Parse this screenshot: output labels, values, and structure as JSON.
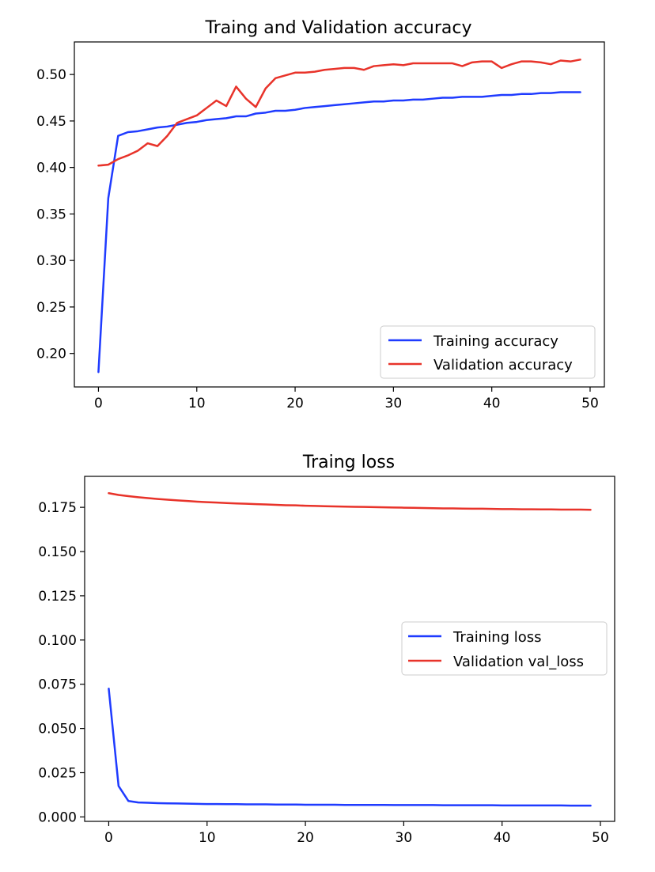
{
  "chart_data": [
    {
      "type": "line",
      "title": "Traing and Validation accuracy",
      "xlabel": "",
      "ylabel": "",
      "xlim": [
        -2.45,
        51.45
      ],
      "ylim": [
        0.164,
        0.535
      ],
      "xticks": [
        0,
        10,
        20,
        30,
        40,
        50
      ],
      "yticks": [
        0.2,
        0.25,
        0.3,
        0.35,
        0.4,
        0.45,
        0.5
      ],
      "ytick_labels": [
        "0.20",
        "0.25",
        "0.30",
        "0.35",
        "0.40",
        "0.45",
        "0.50"
      ],
      "grid": false,
      "legend_position": "lower right",
      "series": [
        {
          "name": "Training accuracy",
          "color": "#1f3bff",
          "x": [
            0,
            1,
            2,
            3,
            4,
            5,
            6,
            7,
            8,
            9,
            10,
            11,
            12,
            13,
            14,
            15,
            16,
            17,
            18,
            19,
            20,
            21,
            22,
            23,
            24,
            25,
            26,
            27,
            28,
            29,
            30,
            31,
            32,
            33,
            34,
            35,
            36,
            37,
            38,
            39,
            40,
            41,
            42,
            43,
            44,
            45,
            46,
            47,
            48,
            49
          ],
          "values": [
            0.18,
            0.367,
            0.434,
            0.438,
            0.439,
            0.441,
            0.443,
            0.444,
            0.446,
            0.448,
            0.449,
            0.451,
            0.452,
            0.453,
            0.455,
            0.455,
            0.458,
            0.459,
            0.461,
            0.461,
            0.462,
            0.464,
            0.465,
            0.466,
            0.467,
            0.468,
            0.469,
            0.47,
            0.471,
            0.471,
            0.472,
            0.472,
            0.473,
            0.473,
            0.474,
            0.475,
            0.475,
            0.476,
            0.476,
            0.476,
            0.477,
            0.478,
            0.478,
            0.479,
            0.479,
            0.48,
            0.48,
            0.481,
            0.481,
            0.481
          ]
        },
        {
          "name": "Validation accuracy",
          "color": "#e8332a",
          "x": [
            0,
            1,
            2,
            3,
            4,
            5,
            6,
            7,
            8,
            9,
            10,
            11,
            12,
            13,
            14,
            15,
            16,
            17,
            18,
            19,
            20,
            21,
            22,
            23,
            24,
            25,
            26,
            27,
            28,
            29,
            30,
            31,
            32,
            33,
            34,
            35,
            36,
            37,
            38,
            39,
            40,
            41,
            42,
            43,
            44,
            45,
            46,
            47,
            48,
            49
          ],
          "values": [
            0.402,
            0.403,
            0.409,
            0.413,
            0.418,
            0.426,
            0.423,
            0.434,
            0.448,
            0.452,
            0.456,
            0.464,
            0.472,
            0.466,
            0.487,
            0.474,
            0.465,
            0.485,
            0.496,
            0.499,
            0.502,
            0.502,
            0.503,
            0.505,
            0.506,
            0.507,
            0.507,
            0.505,
            0.509,
            0.51,
            0.511,
            0.51,
            0.512,
            0.512,
            0.512,
            0.512,
            0.512,
            0.509,
            0.513,
            0.514,
            0.514,
            0.507,
            0.511,
            0.514,
            0.514,
            0.513,
            0.511,
            0.515,
            0.514,
            0.516
          ]
        }
      ]
    },
    {
      "type": "line",
      "title": "Traing loss",
      "xlabel": "",
      "ylabel": "",
      "xlim": [
        -2.45,
        51.45
      ],
      "ylim": [
        -0.0025,
        0.1925
      ],
      "xticks": [
        0,
        10,
        20,
        30,
        40,
        50
      ],
      "yticks": [
        0.0,
        0.025,
        0.05,
        0.075,
        0.1,
        0.125,
        0.15,
        0.175
      ],
      "ytick_labels": [
        "0.000",
        "0.025",
        "0.050",
        "0.075",
        "0.100",
        "0.125",
        "0.150",
        "0.175"
      ],
      "grid": false,
      "legend_position": "center right",
      "series": [
        {
          "name": "Training loss",
          "color": "#1f3bff",
          "x": [
            0,
            1,
            2,
            3,
            4,
            5,
            6,
            7,
            8,
            9,
            10,
            11,
            12,
            13,
            14,
            15,
            16,
            17,
            18,
            19,
            20,
            21,
            22,
            23,
            24,
            25,
            26,
            27,
            28,
            29,
            30,
            31,
            32,
            33,
            34,
            35,
            36,
            37,
            38,
            39,
            40,
            41,
            42,
            43,
            44,
            45,
            46,
            47,
            48,
            49
          ],
          "values": [
            0.0725,
            0.0175,
            0.009,
            0.0082,
            0.008,
            0.0078,
            0.0077,
            0.0076,
            0.0075,
            0.0074,
            0.0073,
            0.0073,
            0.0072,
            0.0072,
            0.0071,
            0.0071,
            0.0071,
            0.007,
            0.007,
            0.007,
            0.0069,
            0.0069,
            0.0069,
            0.0069,
            0.0068,
            0.0068,
            0.0068,
            0.0068,
            0.0068,
            0.0067,
            0.0067,
            0.0067,
            0.0067,
            0.0067,
            0.0066,
            0.0066,
            0.0066,
            0.0066,
            0.0066,
            0.0066,
            0.0065,
            0.0065,
            0.0065,
            0.0065,
            0.0065,
            0.0065,
            0.0065,
            0.0064,
            0.0064,
            0.0064
          ]
        },
        {
          "name": "Validation val_loss",
          "color": "#e8332a",
          "x": [
            0,
            1,
            2,
            3,
            4,
            5,
            6,
            7,
            8,
            9,
            10,
            11,
            12,
            13,
            14,
            15,
            16,
            17,
            18,
            19,
            20,
            21,
            22,
            23,
            24,
            25,
            26,
            27,
            28,
            29,
            30,
            31,
            32,
            33,
            34,
            35,
            36,
            37,
            38,
            39,
            40,
            41,
            42,
            43,
            44,
            45,
            46,
            47,
            48,
            49
          ],
          "values": [
            0.183,
            0.182,
            0.1813,
            0.1807,
            0.1802,
            0.1797,
            0.1793,
            0.1789,
            0.1786,
            0.1782,
            0.1779,
            0.1777,
            0.1774,
            0.1772,
            0.177,
            0.1768,
            0.1766,
            0.1764,
            0.1762,
            0.1761,
            0.1759,
            0.1758,
            0.1756,
            0.1755,
            0.1754,
            0.1753,
            0.1752,
            0.1751,
            0.175,
            0.1749,
            0.1748,
            0.1747,
            0.1746,
            0.1745,
            0.1744,
            0.1744,
            0.1743,
            0.1742,
            0.1742,
            0.1741,
            0.174,
            0.174,
            0.1739,
            0.1739,
            0.1738,
            0.1738,
            0.1737,
            0.1737,
            0.1737,
            0.1736
          ]
        }
      ]
    }
  ]
}
